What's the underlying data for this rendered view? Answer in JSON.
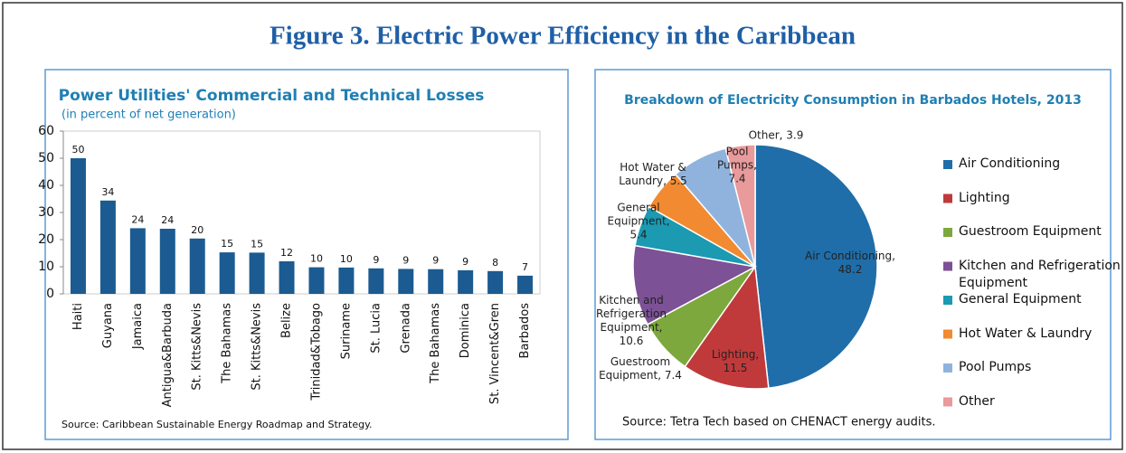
{
  "title": "Figure 3. Electric Power Efficiency in the Caribbean",
  "chart_data": [
    {
      "type": "bar",
      "title": "Power Utilities' Commercial and Technical Losses",
      "subtitle": "(in percent of net generation)",
      "source": "Source: Caribbean Sustainable Energy Roadmap and Strategy.",
      "categories": [
        "Haiti",
        "Guyana",
        "Jamaica",
        "Antigua&Barbuda",
        "St. Kitts&Nevis",
        "The Bahamas",
        "St. Kitts&Nevis",
        "Belize",
        "Trinidad&Tobago",
        "Suriname",
        "St. Lucia",
        "Grenada",
        "The Bahamas",
        "Dominica",
        "St. Vincent&Gren",
        "Barbados"
      ],
      "values": [
        50,
        34.4,
        24.2,
        24,
        20.4,
        15.3,
        15.2,
        12,
        9.8,
        9.7,
        9.4,
        9.2,
        9.1,
        8.7,
        8.4,
        6.7
      ],
      "value_labels": [
        "50",
        "34",
        "24",
        "24",
        "20",
        "15",
        "15",
        "12",
        "10",
        "10",
        "9",
        "9",
        "9",
        "9",
        "8",
        "7"
      ],
      "color": "#1b5b91",
      "ylim": [
        0,
        60
      ],
      "yticks": [
        0,
        10,
        20,
        30,
        40,
        50,
        60
      ]
    },
    {
      "type": "pie",
      "title": "Breakdown of Electricity Consumption in Barbados Hotels, 2013",
      "source": "Source: Tetra Tech based on CHENACT energy audits.",
      "categories": [
        "Air Conditioning",
        "Lighting",
        "Guestroom Equipment",
        "Kitchen and Refrigeration Equipment",
        "General Equipment",
        "Hot Water & Laundry",
        "Pool Pumps",
        "Other"
      ],
      "values": [
        48.2,
        11.5,
        7.4,
        10.6,
        5.4,
        5.5,
        7.4,
        3.9
      ],
      "value_labels": [
        "Air Conditioning, 48.2",
        "Lighting, 11.5",
        "Guestroom Equipment, 7.4",
        "Kitchen and Refrigeration Equipment, 10.6",
        "General Equipment, 5.4",
        "Hot Water & Laundry, 5.5",
        "Pool Pumps, 7.4",
        "Other, 3.9"
      ],
      "colors": [
        "#1f6ea9",
        "#c03a3b",
        "#7ca83d",
        "#7c5196",
        "#1b9ab2",
        "#f18a31",
        "#90b3de",
        "#e99a9b"
      ]
    }
  ]
}
